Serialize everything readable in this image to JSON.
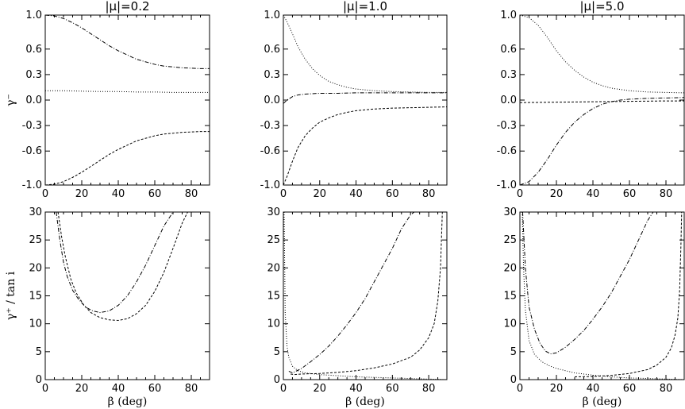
{
  "panels": [
    {
      "title": "|μ|=0.2",
      "row": 0,
      "col": 0,
      "xlim": [
        0,
        90
      ],
      "ylim": [
        -1.0,
        1.0
      ],
      "xticks": [
        0,
        20,
        40,
        60,
        80
      ],
      "yticks": [
        "-1.0",
        "-0.6",
        "-0.3",
        "0.0",
        "0.3",
        "0.6",
        "1.0"
      ],
      "ylabel": "γ⁻",
      "xlabel": "",
      "series": [
        {
          "style": "dashdot",
          "x": [
            0,
            5,
            10,
            15,
            20,
            25,
            30,
            35,
            40,
            45,
            50,
            55,
            60,
            65,
            70,
            75,
            80,
            85,
            90
          ],
          "y": [
            1.0,
            0.99,
            0.96,
            0.91,
            0.85,
            0.78,
            0.71,
            0.64,
            0.58,
            0.53,
            0.48,
            0.45,
            0.42,
            0.4,
            0.39,
            0.38,
            0.375,
            0.37,
            0.37
          ]
        },
        {
          "style": "dot",
          "x": [
            0,
            10,
            20,
            30,
            40,
            50,
            60,
            70,
            80,
            90
          ],
          "y": [
            0.11,
            0.11,
            0.105,
            0.1,
            0.1,
            0.095,
            0.095,
            0.09,
            0.09,
            0.09
          ]
        },
        {
          "style": "dash",
          "x": [
            0,
            5,
            10,
            15,
            20,
            25,
            30,
            35,
            40,
            45,
            50,
            55,
            60,
            65,
            70,
            75,
            80,
            85,
            90
          ],
          "y": [
            -1.0,
            -0.99,
            -0.96,
            -0.91,
            -0.85,
            -0.78,
            -0.71,
            -0.64,
            -0.58,
            -0.53,
            -0.48,
            -0.45,
            -0.42,
            -0.4,
            -0.39,
            -0.38,
            -0.375,
            -0.37,
            -0.37
          ]
        }
      ]
    },
    {
      "title": "|μ|=1.0",
      "row": 0,
      "col": 1,
      "xlim": [
        0,
        90
      ],
      "ylim": [
        -1.0,
        1.0
      ],
      "xticks": [
        0,
        20,
        40,
        60,
        80
      ],
      "yticks": [
        "-1.0",
        "-0.6",
        "-0.3",
        "0.0",
        "0.3",
        "0.6",
        "1.0"
      ],
      "ylabel": "",
      "xlabel": "",
      "series": [
        {
          "style": "dot",
          "x": [
            0,
            2,
            5,
            8,
            12,
            16,
            20,
            25,
            30,
            35,
            40,
            50,
            60,
            70,
            80,
            90
          ],
          "y": [
            1.0,
            0.92,
            0.78,
            0.63,
            0.48,
            0.37,
            0.29,
            0.22,
            0.18,
            0.15,
            0.13,
            0.11,
            0.1,
            0.095,
            0.09,
            0.09
          ]
        },
        {
          "style": "dashdot",
          "x": [
            0,
            2,
            5,
            8,
            12,
            16,
            20,
            30,
            40,
            50,
            60,
            70,
            80,
            90
          ],
          "y": [
            -0.04,
            0.0,
            0.04,
            0.06,
            0.07,
            0.075,
            0.08,
            0.08,
            0.085,
            0.085,
            0.085,
            0.085,
            0.085,
            0.085
          ]
        },
        {
          "style": "dash",
          "x": [
            0,
            2,
            5,
            8,
            12,
            16,
            20,
            25,
            30,
            35,
            40,
            50,
            60,
            70,
            80,
            90
          ],
          "y": [
            -1.0,
            -0.9,
            -0.72,
            -0.56,
            -0.42,
            -0.33,
            -0.26,
            -0.21,
            -0.17,
            -0.145,
            -0.125,
            -0.105,
            -0.095,
            -0.09,
            -0.085,
            -0.08
          ]
        }
      ]
    },
    {
      "title": "|μ|=5.0",
      "row": 0,
      "col": 2,
      "xlim": [
        0,
        90
      ],
      "ylim": [
        -1.0,
        1.0
      ],
      "xticks": [
        0,
        20,
        40,
        60,
        80
      ],
      "yticks": [
        "-1.0",
        "-0.6",
        "-0.3",
        "0.0",
        "0.3",
        "0.6",
        "1.0"
      ],
      "ylabel": "",
      "xlabel": "",
      "series": [
        {
          "style": "dot",
          "x": [
            0,
            5,
            10,
            15,
            20,
            25,
            30,
            35,
            40,
            45,
            50,
            60,
            70,
            80,
            90
          ],
          "y": [
            1.0,
            0.97,
            0.88,
            0.74,
            0.58,
            0.45,
            0.35,
            0.27,
            0.21,
            0.17,
            0.14,
            0.11,
            0.095,
            0.09,
            0.085
          ]
        },
        {
          "style": "dash",
          "x": [
            0,
            20,
            40,
            60,
            80,
            90
          ],
          "y": [
            -0.03,
            -0.025,
            -0.02,
            -0.015,
            -0.01,
            -0.01
          ]
        },
        {
          "style": "dashdot",
          "x": [
            0,
            5,
            10,
            15,
            20,
            25,
            30,
            35,
            40,
            45,
            50,
            55,
            60,
            70,
            80,
            90
          ],
          "y": [
            -1.0,
            -0.96,
            -0.85,
            -0.7,
            -0.53,
            -0.38,
            -0.26,
            -0.17,
            -0.1,
            -0.05,
            -0.02,
            0.0,
            0.01,
            0.02,
            0.025,
            0.03
          ]
        }
      ]
    },
    {
      "title": "",
      "row": 1,
      "col": 0,
      "xlim": [
        0,
        90
      ],
      "ylim": [
        0,
        30
      ],
      "xticks": [
        0,
        20,
        40,
        60,
        80
      ],
      "yticks": [
        "0",
        "5",
        "10",
        "15",
        "20",
        "25",
        "30"
      ],
      "ylabel": "γ⁺ / tan i",
      "xlabel": "β (deg)",
      "series": [
        {
          "style": "dashdot",
          "x": [
            6,
            8,
            10,
            12,
            15,
            18,
            22,
            26,
            30,
            35,
            40,
            45,
            50,
            55,
            60,
            65,
            70
          ],
          "y": [
            30,
            25,
            21,
            18.5,
            16,
            14.5,
            13,
            12.3,
            12,
            12.3,
            13.3,
            15,
            17.5,
            20.5,
            24,
            27.5,
            30
          ]
        },
        {
          "style": "dash",
          "x": [
            7,
            9,
            11,
            14,
            17,
            21,
            25,
            30,
            35,
            40,
            45,
            50,
            55,
            60,
            65,
            70,
            75,
            78
          ],
          "y": [
            30,
            25.5,
            22,
            18,
            15.5,
            13.4,
            12,
            11.1,
            10.7,
            10.6,
            10.9,
            11.8,
            13.3,
            15.8,
            19.2,
            23.5,
            28,
            30
          ]
        }
      ]
    },
    {
      "title": "",
      "row": 1,
      "col": 1,
      "xlim": [
        0,
        90
      ],
      "ylim": [
        0,
        30
      ],
      "xticks": [
        0,
        20,
        40,
        60,
        80
      ],
      "yticks": [
        "0",
        "5",
        "10",
        "15",
        "20",
        "25",
        "30"
      ],
      "ylabel": "",
      "xlabel": "β (deg)",
      "series": [
        {
          "style": "dot",
          "x": [
            0.4,
            1,
            2,
            3,
            5,
            8,
            12,
            20,
            30,
            40,
            50,
            60,
            70,
            80,
            90
          ],
          "y": [
            30,
            12,
            6,
            4,
            2.4,
            1.6,
            1.2,
            0.9,
            0.7,
            0.5,
            0.4,
            0.3,
            0.2,
            0.1,
            0.0
          ]
        },
        {
          "style": "dashdot",
          "x": [
            3,
            5,
            10,
            15,
            20,
            25,
            30,
            35,
            40,
            45,
            50,
            55,
            60,
            65,
            70,
            72
          ],
          "y": [
            1.5,
            1.2,
            2,
            3.2,
            4.5,
            6,
            7.8,
            9.8,
            12,
            14.5,
            17.5,
            20.5,
            23.5,
            27,
            29.5,
            30
          ]
        },
        {
          "style": "dash",
          "x": [
            4,
            6,
            10,
            20,
            30,
            40,
            50,
            60,
            70,
            75,
            80,
            83,
            85,
            86.5,
            87.5
          ],
          "y": [
            1.0,
            0.9,
            1.0,
            1.1,
            1.3,
            1.6,
            2.1,
            2.8,
            4,
            5.3,
            7.5,
            10,
            14,
            20,
            30
          ]
        }
      ]
    },
    {
      "title": "",
      "row": 1,
      "col": 2,
      "xlim": [
        0,
        90
      ],
      "ylim": [
        0,
        30
      ],
      "xticks": [
        0,
        20,
        40,
        60,
        80
      ],
      "yticks": [
        "0",
        "5",
        "10",
        "15",
        "20",
        "25",
        "30"
      ],
      "ylabel": "",
      "xlabel": "β (deg)",
      "series": [
        {
          "style": "dot",
          "x": [
            1.3,
            2,
            3,
            5,
            8,
            12,
            16,
            20,
            25,
            30,
            35,
            40,
            50,
            60,
            70,
            80,
            90
          ],
          "y": [
            30,
            20,
            12.5,
            7,
            4.5,
            3.2,
            2.5,
            2,
            1.6,
            1.2,
            1,
            0.8,
            0.5,
            0.3,
            0.2,
            0.1,
            0.0
          ]
        },
        {
          "style": "dashdot",
          "x": [
            1.5,
            3,
            5,
            8,
            11,
            14,
            17,
            20,
            25,
            30,
            35,
            40,
            45,
            50,
            55,
            60,
            65,
            70,
            73
          ],
          "y": [
            30,
            20,
            13,
            9,
            6.5,
            5.1,
            4.6,
            4.8,
            5.8,
            7.2,
            8.8,
            10.8,
            13,
            15.5,
            18.5,
            21.5,
            25,
            28.5,
            30
          ]
        },
        {
          "style": "dash",
          "x": [
            30,
            40,
            50,
            60,
            70,
            75,
            80,
            83,
            85,
            86.5,
            87.5,
            88.2,
            88.6
          ],
          "y": [
            0.5,
            0.55,
            0.75,
            1.1,
            1.8,
            2.6,
            4,
            5.7,
            8,
            11,
            16,
            24,
            30
          ]
        }
      ]
    }
  ]
}
